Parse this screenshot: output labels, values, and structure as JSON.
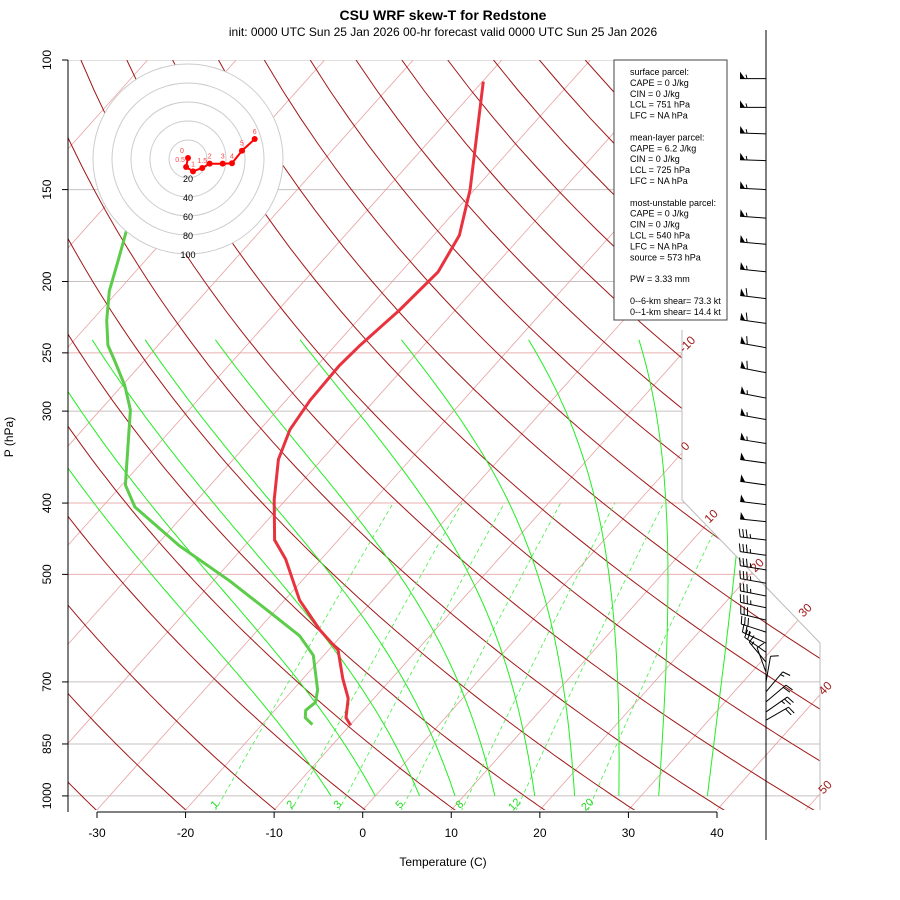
{
  "title": "CSU WRF skew-T for Redstone",
  "subtitle": "init: 0000 UTC Sun 25 Jan 2026    00-hr forecast valid 0000 UTC Sun 25 Jan 2026",
  "chart_data": {
    "type": "skew-t",
    "xlabel": "Temperature (C)",
    "ylabel": "P (hPa)",
    "y_scale": "log",
    "ylim": [
      1050,
      100
    ],
    "xlim": [
      -33,
      52
    ],
    "x_ticks": [
      "-30",
      "-20",
      "-10",
      "0",
      "10",
      "20",
      "30",
      "40"
    ],
    "y_ticks": [
      "100",
      "150",
      "200",
      "250",
      "300",
      "400",
      "500",
      "700",
      "850",
      "1000"
    ],
    "isotherm_labels": [
      "-10",
      "0",
      "10",
      "20",
      "30",
      "40",
      "50"
    ],
    "mixing_ratio_labels": [
      "1",
      "2",
      "3",
      "5",
      "8",
      "12",
      "20"
    ],
    "colors": {
      "temperature": "#e8333f",
      "dewpoint": "#5ccc4a",
      "dry_adiabat": "#a01818",
      "moist_adiabat": "#22ee22",
      "mixing_ratio": "#44ee44",
      "isotherm": "#e8a0a0",
      "hodograph": "#ff0000"
    },
    "temperature": {
      "p": [
        107,
        150,
        173,
        194,
        219,
        244,
        260,
        290,
        318,
        349,
        396,
        449,
        477,
        542,
        595,
        634,
        693,
        737,
        783,
        802
      ],
      "t": [
        -59.9,
        -50.5,
        -47.1,
        -45.8,
        -46.3,
        -47.2,
        -47.5,
        -47.3,
        -46.6,
        -44.9,
        -41.3,
        -37.2,
        -34.0,
        -28.3,
        -23.0,
        -18.9,
        -15.5,
        -12.9,
        -11.2,
        -9.9
      ]
    },
    "dewpoint": {
      "p": [
        150,
        171,
        187,
        206,
        226,
        244,
        256,
        277,
        299,
        350,
        378,
        405,
        457,
        510,
        561,
        606,
        644,
        718,
        746,
        765,
        783,
        800
      ],
      "t": [
        -87,
        -85.1,
        -83.1,
        -81.0,
        -78.3,
        -75.7,
        -73.4,
        -69.7,
        -66.6,
        -61.9,
        -59.6,
        -56.3,
        -47.4,
        -38.2,
        -30.7,
        -24.7,
        -21.2,
        -17.2,
        -16.2,
        -16.5,
        -15.8,
        -14.3
      ]
    },
    "hodograph": {
      "rings_kt": [
        "20",
        "40",
        "60",
        "80",
        "100"
      ],
      "points": [
        {
          "label": "0",
          "u": 0,
          "v": 1
        },
        {
          "label": "0.5",
          "u": -2,
          "v": -8.4
        },
        {
          "label": "1",
          "u": 5.3,
          "v": -13
        },
        {
          "label": "1.5",
          "u": 15,
          "v": -9.5
        },
        {
          "label": "2",
          "u": 22.8,
          "v": -4.9
        },
        {
          "label": "3",
          "u": 36.5,
          "v": -4.9
        },
        {
          "label": "4",
          "u": 46.3,
          "v": -4.5
        },
        {
          "label": "5",
          "u": 56.8,
          "v": 8.7
        },
        {
          "label": "6",
          "u": 70.2,
          "v": 21
        }
      ]
    },
    "wind_barbs": [
      [
        106,
        270,
        55
      ],
      [
        116,
        270,
        55
      ],
      [
        126,
        272,
        55
      ],
      [
        137,
        272,
        55
      ],
      [
        150,
        273,
        55
      ],
      [
        164,
        274,
        55
      ],
      [
        178,
        275,
        55
      ],
      [
        194,
        276,
        55
      ],
      [
        211,
        277,
        60
      ],
      [
        228,
        278,
        60
      ],
      [
        246,
        280,
        60
      ],
      [
        266,
        281,
        60
      ],
      [
        288,
        281,
        55
      ],
      [
        308,
        280,
        55
      ],
      [
        332,
        279,
        55
      ],
      [
        353,
        278,
        50
      ],
      [
        378,
        278,
        50
      ],
      [
        402,
        277,
        50
      ],
      [
        424,
        276,
        50
      ],
      [
        449,
        277,
        35
      ],
      [
        471,
        278,
        35
      ],
      [
        493,
        279,
        35
      ],
      [
        514,
        280,
        35
      ],
      [
        535,
        281,
        35
      ],
      [
        555,
        282,
        35
      ],
      [
        577,
        284,
        30
      ],
      [
        599,
        288,
        30
      ],
      [
        620,
        295,
        25
      ],
      [
        638,
        305,
        20
      ],
      [
        658,
        320,
        15
      ],
      [
        679,
        340,
        10
      ],
      [
        700,
        10,
        10
      ],
      [
        722,
        40,
        15
      ],
      [
        745,
        50,
        20
      ],
      [
        769,
        55,
        25
      ],
      [
        789,
        60,
        20
      ]
    ]
  },
  "info": [
    "surface parcel:",
    "CAPE = 0 J/kg",
    "CIN = 0 J/kg",
    "LCL = 751 hPa",
    "LFC = NA hPa",
    "",
    "mean-layer parcel:",
    "CAPE = 6.2 J/kg",
    "CIN = 0 J/kg",
    "LCL = 725 hPa",
    "LFC = NA hPa",
    "",
    "most-unstable parcel:",
    "CAPE = 0 J/kg",
    "CIN = 0 J/kg",
    "LCL = 540 hPa",
    "LFC = NA hPa",
    "source = 573 hPa",
    "",
    "PW =  3.33 mm",
    "",
    "0--6-km shear= 73.3 kt",
    "0--1-km shear= 14.4 kt"
  ]
}
